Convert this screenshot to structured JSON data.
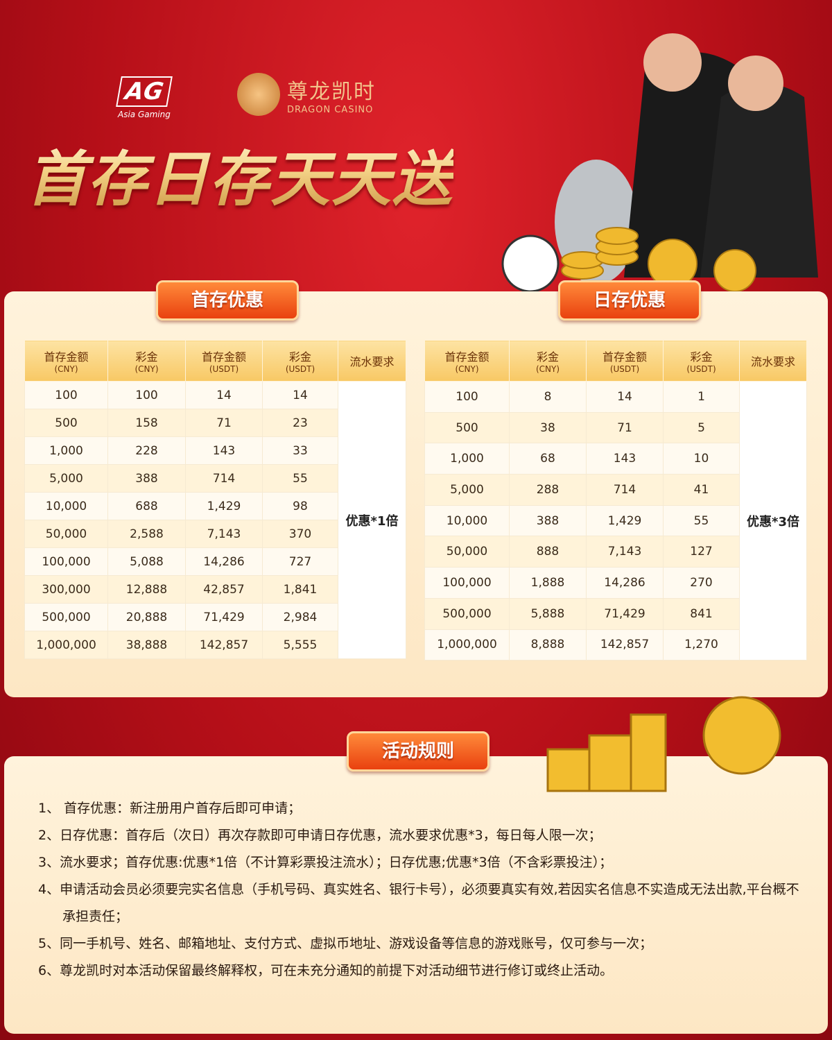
{
  "logos": {
    "ag": "AG",
    "ag_sub": "Asia Gaming",
    "brand": "尊龙凯时",
    "brand_sub": "DRAGON CASINO"
  },
  "title": "首存日存天天送",
  "first_deposit": {
    "tab": "首存优惠",
    "headers": [
      {
        "main": "首存金额",
        "unit": "(CNY)"
      },
      {
        "main": "彩金",
        "unit": "(CNY)"
      },
      {
        "main": "首存金额",
        "unit": "(USDT)"
      },
      {
        "main": "彩金",
        "unit": "(USDT)"
      },
      {
        "main": "流水要求"
      }
    ],
    "rows": [
      [
        "100",
        "100",
        "14",
        "14"
      ],
      [
        "500",
        "158",
        "71",
        "23"
      ],
      [
        "1,000",
        "228",
        "143",
        "33"
      ],
      [
        "5,000",
        "388",
        "714",
        "55"
      ],
      [
        "10,000",
        "688",
        "1,429",
        "98"
      ],
      [
        "50,000",
        "2,588",
        "7,143",
        "370"
      ],
      [
        "100,000",
        "5,088",
        "14,286",
        "727"
      ],
      [
        "300,000",
        "12,888",
        "42,857",
        "1,841"
      ],
      [
        "500,000",
        "20,888",
        "71,429",
        "2,984"
      ],
      [
        "1,000,000",
        "38,888",
        "142,857",
        "5,555"
      ]
    ],
    "requirement": "优惠*1倍"
  },
  "daily_deposit": {
    "tab": "日存优惠",
    "headers": [
      {
        "main": "首存金额",
        "unit": "(CNY)"
      },
      {
        "main": "彩金",
        "unit": "(CNY)"
      },
      {
        "main": "首存金额",
        "unit": "(USDT)"
      },
      {
        "main": "彩金",
        "unit": "(USDT)"
      },
      {
        "main": "流水要求"
      }
    ],
    "rows": [
      [
        "100",
        "8",
        "14",
        "1"
      ],
      [
        "500",
        "38",
        "71",
        "5"
      ],
      [
        "1,000",
        "68",
        "143",
        "10"
      ],
      [
        "5,000",
        "288",
        "714",
        "41"
      ],
      [
        "10,000",
        "388",
        "1,429",
        "55"
      ],
      [
        "50,000",
        "888",
        "7,143",
        "127"
      ],
      [
        "100,000",
        "1,888",
        "14,286",
        "270"
      ],
      [
        "500,000",
        "5,888",
        "71,429",
        "841"
      ],
      [
        "1,000,000",
        "8,888",
        "142,857",
        "1,270"
      ]
    ],
    "requirement": "优惠*3倍"
  },
  "rules": {
    "tab": "活动规则",
    "items": [
      "1、 首存优惠：新注册用户首存后即可申请；",
      "2、日存优惠：首存后（次日）再次存款即可申请日存优惠，流水要求优惠*3，每日每人限一次；",
      "3、流水要求；首存优惠:优惠*1倍（不计算彩票投注流水）；日存优惠;优惠*3倍（不含彩票投注）；",
      "4、申请活动会员必须要完实名信息（手机号码、真实姓名、银行卡号），必须要真实有效,若因实名信息不实造成无法出款,平台概不承担责任；",
      "5、同一手机号、姓名、邮箱地址、支付方式、虚拟币地址、游戏设备等信息的游戏账号，仅可参与一次；",
      "6、尊龙凯时对本活动保留最终解释权，可在未充分通知的前提下对活动细节进行修订或终止活动。"
    ]
  }
}
